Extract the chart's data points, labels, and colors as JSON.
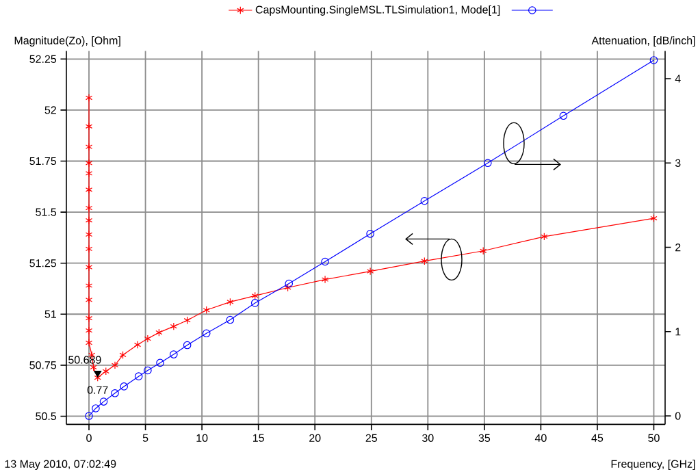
{
  "chart_data": {
    "type": "line",
    "legend": "top",
    "ylabel": "Magnitude(Zo), [Ohm]",
    "y2label": "Attenuation, [dB/inch]",
    "xlabel": "Frequency, [GHz]",
    "xlim": [
      -2,
      51
    ],
    "xticks": [
      0,
      5,
      10,
      15,
      20,
      25,
      30,
      35,
      40,
      45,
      50
    ],
    "ylim": [
      50.46,
      52.29
    ],
    "yticks": [
      50.5,
      50.75,
      51,
      51.25,
      51.5,
      51.75,
      52,
      52.25
    ],
    "y2lim": [
      -0.1,
      4.33
    ],
    "y2ticks": [
      0,
      1,
      2,
      3,
      4
    ],
    "grid": true,
    "series": [
      {
        "name": "CapsMounting.SingleMSL.TLSimulation1, Mode[1]",
        "color": "#ff0000",
        "marker": "cross",
        "x": [
          0,
          0,
          0,
          0,
          0,
          0,
          0,
          0,
          0,
          0,
          0,
          0,
          0,
          0,
          0,
          0,
          0.25,
          0.4,
          0.77,
          1.5,
          2.3,
          3.0,
          4.3,
          5.2,
          6.2,
          7.5,
          8.7,
          10.4,
          12.5,
          14.7,
          17.6,
          20.9,
          24.9,
          29.7,
          34.9,
          40.3,
          50
        ],
        "values": [
          52.06,
          51.92,
          51.82,
          51.74,
          51.69,
          51.61,
          51.52,
          51.46,
          51.39,
          51.32,
          51.23,
          51.14,
          51.07,
          50.98,
          50.92,
          50.86,
          50.8,
          50.74,
          50.689,
          50.72,
          50.75,
          50.8,
          50.85,
          50.88,
          50.91,
          50.94,
          50.97,
          51.02,
          51.06,
          51.09,
          51.13,
          51.17,
          51.21,
          51.26,
          51.31,
          51.38,
          51.47
        ]
      },
      {
        "color": "#0000ff",
        "marker": "circle",
        "axis": "y2",
        "x": [
          0,
          0.6,
          1.3,
          2.3,
          3.1,
          4.4,
          5.2,
          6.3,
          7.5,
          8.7,
          10.4,
          12.5,
          14.7,
          17.7,
          20.9,
          24.9,
          29.7,
          35.3,
          42.0,
          50
        ],
        "values": [
          0,
          0.09,
          0.17,
          0.27,
          0.35,
          0.47,
          0.54,
          0.63,
          0.73,
          0.84,
          0.98,
          1.14,
          1.34,
          1.57,
          1.83,
          2.16,
          2.55,
          3.0,
          3.56,
          4.22
        ]
      }
    ],
    "annotations": [
      {
        "text": "50.689",
        "x": 0.77,
        "y": 50.689
      },
      {
        "text": "0.77",
        "x": 0.77,
        "y": 50.689
      },
      "13 May 2010, 07:02:49"
    ]
  }
}
